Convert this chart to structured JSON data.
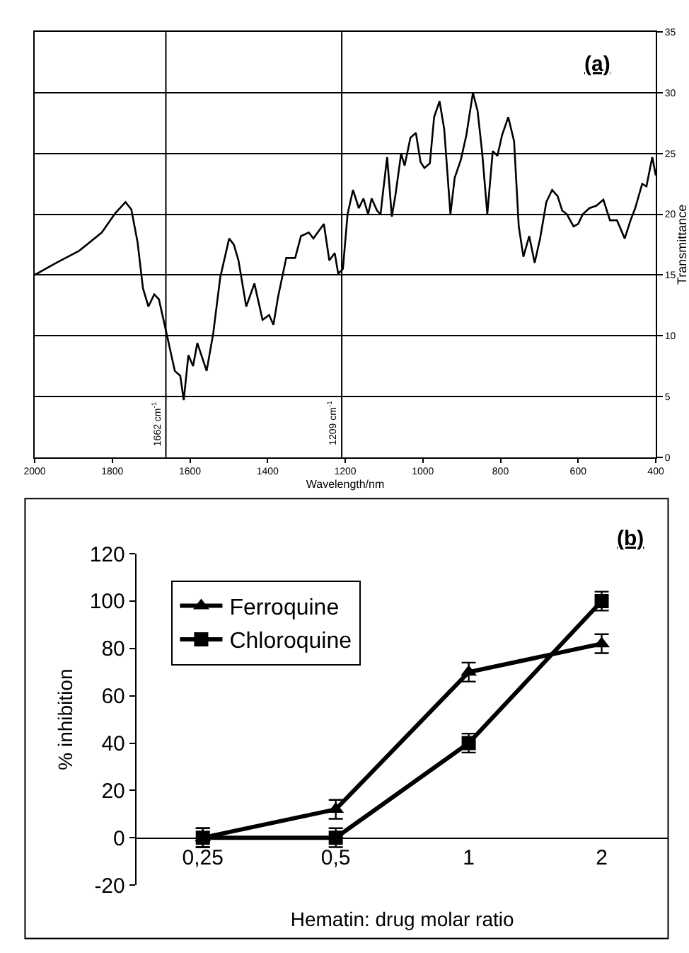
{
  "chart_data": [
    {
      "type": "line",
      "title": "(a)",
      "xlabel": "Wavelength/nm",
      "y2label": "Transmittance",
      "xlim": [
        2000,
        400
      ],
      "xticks": [
        2000,
        1800,
        1600,
        1400,
        1200,
        1000,
        800,
        600,
        400
      ],
      "y2lim": [
        0,
        35
      ],
      "y2ticks": [
        0,
        5,
        10,
        15,
        20,
        25,
        30,
        35
      ],
      "grid": "y",
      "legend": false,
      "marker": "none",
      "series": [
        {
          "color": "#000000",
          "axis": "y2",
          "x": [
            2000,
            1944,
            1885,
            1827,
            1792,
            1766,
            1751,
            1735,
            1721,
            1707,
            1692,
            1680,
            1659,
            1639,
            1625,
            1616,
            1604,
            1592,
            1581,
            1557,
            1540,
            1522,
            1499,
            1487,
            1475,
            1455,
            1434,
            1413,
            1396,
            1385,
            1373,
            1352,
            1329,
            1314,
            1294,
            1282,
            1255,
            1241,
            1227,
            1218,
            1206,
            1194,
            1180,
            1165,
            1153,
            1141,
            1132,
            1118,
            1109,
            1102,
            1092,
            1080,
            1071,
            1056,
            1047,
            1032,
            1018,
            1006,
            996,
            982,
            971,
            957,
            945,
            929,
            918,
            902,
            888,
            871,
            859,
            847,
            834,
            820,
            808,
            796,
            780,
            765,
            753,
            741,
            726,
            712,
            698,
            682,
            667,
            653,
            641,
            629,
            612,
            600,
            588,
            571,
            553,
            535,
            518,
            500,
            480,
            465,
            453,
            435,
            424,
            409,
            400
          ],
          "values": [
            15,
            16.0,
            17.0,
            18.5,
            20.1,
            21,
            20.4,
            17.7,
            13.9,
            12.4,
            13.4,
            13,
            10,
            7.1,
            6.7,
            4.7,
            8.4,
            7.5,
            9.4,
            7.1,
            10.2,
            14.8,
            18,
            17.5,
            16.2,
            12.4,
            14.3,
            11.3,
            11.7,
            10.9,
            13.2,
            16.4,
            16.4,
            18.2,
            18.5,
            18,
            19.2,
            16.2,
            16.8,
            15.1,
            15.5,
            20,
            22,
            20.5,
            21.3,
            20,
            21.3,
            20.3,
            20,
            22,
            24.7,
            19.8,
            21.5,
            25,
            24,
            26.3,
            26.7,
            24.3,
            23.8,
            24.2,
            28,
            29.3,
            27,
            20,
            23,
            24.5,
            26.5,
            30,
            28.5,
            25,
            20,
            25.2,
            24.8,
            26.5,
            28,
            26,
            19,
            16.5,
            18.2,
            16,
            18,
            21,
            22,
            21.5,
            20.3,
            20,
            19,
            19.2,
            20,
            20.5,
            20.7,
            21.2,
            19.5,
            19.5,
            18,
            19.5,
            20.5,
            22.5,
            22.3,
            24.7,
            23.2
          ]
        }
      ],
      "ref_lines": [
        {
          "axis": "x",
          "value": 1662,
          "label": "1662 cm$^{-1}$",
          "color": "#000000"
        },
        {
          "axis": "x",
          "value": 1209,
          "label": "1209 cm$^{-1}$",
          "color": "#000000"
        }
      ]
    },
    {
      "type": "line",
      "title": "(b)",
      "xlabel": "Hematin: drug molar ratio",
      "ylabel": "% inhibition",
      "categories": [
        "0,25",
        "0,5",
        "1",
        "2"
      ],
      "ylim": [
        -20,
        120
      ],
      "yticks": [
        -20,
        0,
        20,
        40,
        60,
        80,
        100,
        120
      ],
      "legend": "top left",
      "series": [
        {
          "name": "Ferroquine",
          "color": "#000000",
          "marker": "triangle",
          "values": [
            0,
            12,
            70,
            82
          ],
          "errors": [
            4,
            4,
            4,
            4
          ]
        },
        {
          "name": "Chloroquine",
          "color": "#000000",
          "marker": "square",
          "values": [
            0,
            0,
            40,
            100
          ],
          "errors": [
            4,
            4,
            4,
            4
          ]
        }
      ]
    }
  ]
}
